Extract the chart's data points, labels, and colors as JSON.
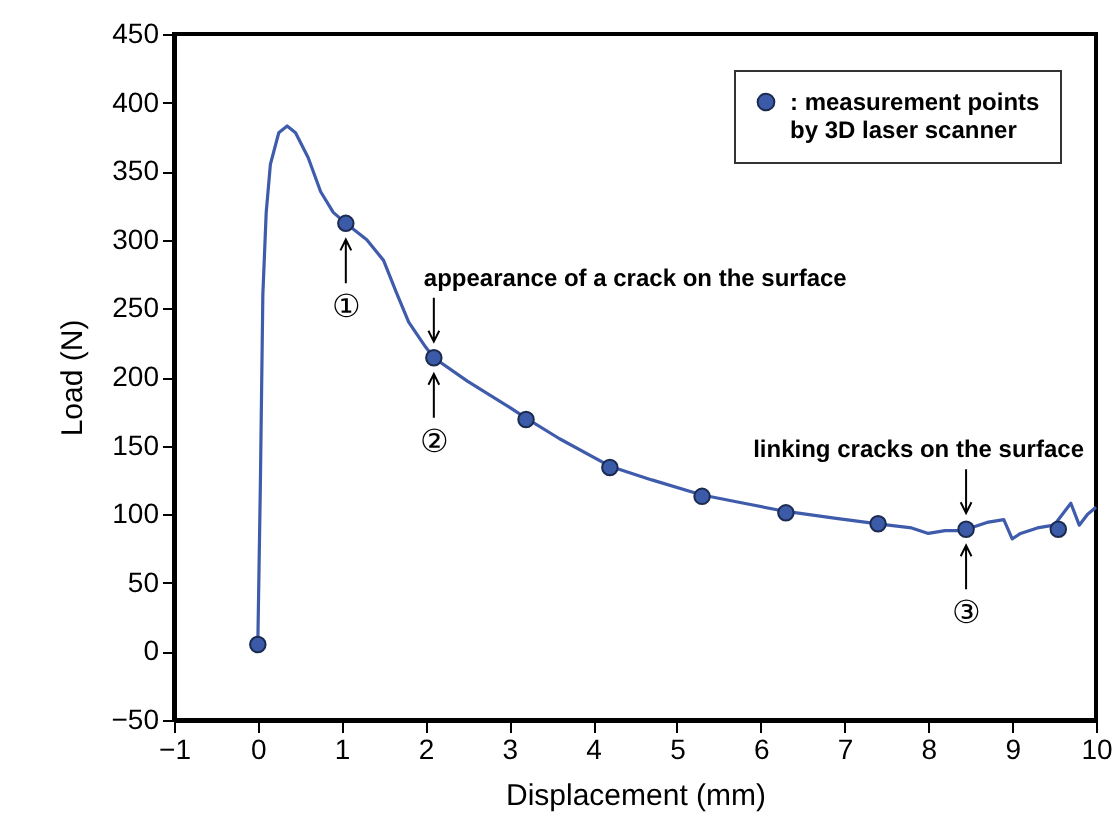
{
  "chart_data": {
    "type": "line",
    "xlabel": "Displacement (mm)",
    "ylabel": "Load (N)",
    "xlim": [
      -1,
      10
    ],
    "xticks": [
      -1,
      0,
      1,
      2,
      3,
      4,
      5,
      6,
      7,
      8,
      9,
      10
    ],
    "ylim": [
      -50,
      450
    ],
    "yticks": [
      -50,
      0,
      50,
      100,
      150,
      200,
      250,
      300,
      350,
      400,
      450
    ],
    "grid": false,
    "legend": "top right",
    "series": [
      {
        "color": "#3f5bab",
        "x": [
          0,
          0.03,
          0.06,
          0.1,
          0.15,
          0.25,
          0.35,
          0.45,
          0.6,
          0.75,
          0.9,
          1.05,
          1.3,
          1.5,
          1.65,
          1.8,
          2.0,
          2.1,
          2.5,
          3.0,
          3.2,
          3.6,
          4.2,
          4.7,
          5.3,
          5.8,
          6.3,
          6.9,
          7.4,
          7.8,
          8.0,
          8.2,
          8.4,
          8.7,
          8.9,
          9.0,
          9.1,
          9.3,
          9.5,
          9.7,
          9.8,
          9.9,
          10
        ],
        "values": [
          5,
          120,
          260,
          320,
          355,
          378,
          383,
          378,
          360,
          335,
          320,
          312,
          300,
          285,
          262,
          240,
          222,
          214,
          197,
          178,
          170,
          155,
          135,
          125,
          114,
          108,
          102,
          97,
          93,
          90,
          86,
          88,
          88,
          94,
          96,
          82,
          86,
          90,
          92,
          108,
          92,
          100,
          105
        ]
      },
      {
        "type": "scatter",
        "name": ": measurement points\nby 3D laser scanner",
        "color": "#3b5ba8",
        "marker": "circle",
        "x": [
          0,
          1.05,
          2.1,
          3.2,
          4.2,
          5.3,
          6.3,
          7.4,
          8.45,
          9.55
        ],
        "values": [
          5,
          312,
          214,
          169,
          134,
          113,
          101,
          93,
          89,
          89
        ]
      }
    ],
    "annotations": [
      {
        "text": "①",
        "x": 1.05,
        "y": 312
      },
      {
        "text": "appearance of a crack on the surface",
        "x": 2.1,
        "y": 214
      },
      {
        "text": "②",
        "x": 2.1,
        "y": 214
      },
      {
        "text": "linking cracks on the surface",
        "x": 8.45,
        "y": 89
      },
      {
        "text": "③",
        "x": 8.45,
        "y": 89
      }
    ]
  }
}
